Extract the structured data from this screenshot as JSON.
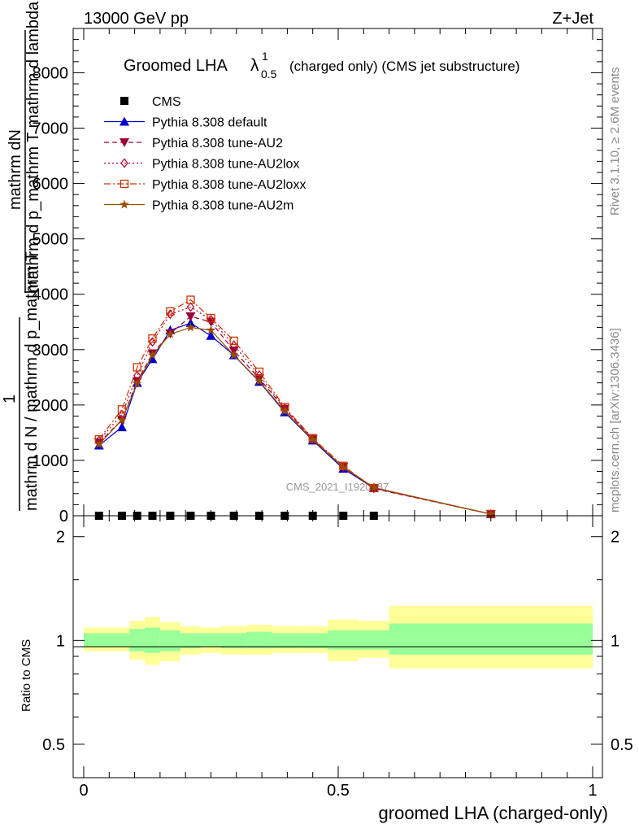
{
  "header": {
    "left": "13000 GeV pp",
    "right": "Z+Jet"
  },
  "title": {
    "prefix": "Groomed LHA",
    "lambda": "λ",
    "sup": "1",
    "sub": "0.5",
    "suffix": "(charged only) (CMS jet substructure)"
  },
  "side_labels": {
    "rivet": "Rivet 3.1.10, ≥ 2.6M events",
    "mcplots": "mcplots.cern.ch [arXiv:1306.3436]"
  },
  "watermark": "CMS_2021_I1920187",
  "axes": {
    "ylabel_top_numerator": "mathrm dN",
    "ylabel_top_denominator": "mathrm d p_mathrm T mathrm d lambda",
    "ylabel_one": "1",
    "ylabel_left_denominator": "mathrm d N / mathrm d p_mathrm T",
    "ylabel_ratio": "Ratio to CMS",
    "xlabel": "groomed LHA (charged-only)"
  },
  "colors": {
    "cms": "#000000",
    "default": "#0000cc",
    "au2": "#990033",
    "au2lox": "#b3002d",
    "au2loxx": "#cc3300",
    "au2m": "#994c00",
    "band_inner": "#99ff99",
    "band_outer": "#ffff99"
  },
  "chart_data": [
    {
      "type": "line",
      "xlim": [
        -0.04,
        1.01
      ],
      "ylim": [
        0,
        8800
      ],
      "yticks": [
        0,
        1000,
        2000,
        3000,
        4000,
        5000,
        6000,
        7000,
        8000
      ],
      "ytick_labels": [
        "0",
        "1000",
        "2000",
        "3000",
        "4000",
        "5000",
        "6000",
        "7000",
        "8000"
      ],
      "legend": [
        "CMS",
        "Pythia 8.308 default",
        "Pythia 8.308 tune-AU2",
        "Pythia 8.308 tune-AU2lox",
        "Pythia 8.308 tune-AU2loxx",
        "Pythia 8.308 tune-AU2m"
      ],
      "legend_position": "top-left",
      "x": [
        0.03,
        0.075,
        0.105,
        0.135,
        0.17,
        0.21,
        0.25,
        0.295,
        0.345,
        0.395,
        0.45,
        0.51,
        0.57,
        0.8
      ],
      "series": [
        {
          "name": "CMS",
          "marker": "square",
          "values": [
            0,
            0,
            0,
            0,
            0,
            0,
            0,
            0,
            0,
            0,
            0,
            0,
            0,
            null
          ]
        },
        {
          "name": "Pythia 8.308 default",
          "marker": "triangle-up",
          "dash": "solid",
          "values": [
            1270,
            1600,
            2400,
            2830,
            3350,
            3480,
            3250,
            2900,
            2420,
            1870,
            1360,
            850,
            500,
            30
          ]
        },
        {
          "name": "Pythia 8.308 tune-AU2",
          "marker": "triangle-down",
          "dash": "dash",
          "values": [
            1320,
            1730,
            2430,
            2930,
            3290,
            3600,
            3500,
            2980,
            2480,
            1930,
            1380,
            880,
            490,
            30
          ]
        },
        {
          "name": "Pythia 8.308 tune-AU2lox",
          "marker": "diamond",
          "dash": "dot",
          "values": [
            1360,
            1830,
            2530,
            3140,
            3640,
            3770,
            3540,
            3080,
            2540,
            1940,
            1390,
            880,
            500,
            30
          ]
        },
        {
          "name": "Pythia 8.308 tune-AU2loxx",
          "marker": "square-open",
          "dash": "dashdot",
          "values": [
            1380,
            1920,
            2680,
            3200,
            3690,
            3900,
            3570,
            3160,
            2600,
            1960,
            1400,
            900,
            500,
            30
          ]
        },
        {
          "name": "Pythia 8.308 tune-AU2m",
          "marker": "star",
          "dash": "solid",
          "values": [
            1290,
            1730,
            2390,
            2900,
            3280,
            3400,
            3350,
            2900,
            2430,
            1890,
            1370,
            880,
            510,
            30
          ]
        }
      ]
    },
    {
      "type": "area",
      "xlim": [
        -0.04,
        1.01
      ],
      "ylim": [
        0.4,
        2.3
      ],
      "yscale": "log",
      "yticks": [
        0.5,
        1,
        2
      ],
      "ytick_labels": [
        "0.5",
        "1",
        "2"
      ],
      "xticks": [
        0,
        0.5,
        1
      ],
      "xtick_labels": [
        "0",
        "0.5",
        "1"
      ],
      "reference": 1,
      "bins": [
        0,
        0.06,
        0.09,
        0.12,
        0.15,
        0.19,
        0.23,
        0.27,
        0.32,
        0.37,
        0.42,
        0.48,
        0.54,
        0.6,
        1.0
      ],
      "inner_band": {
        "lo": [
          0.96,
          0.96,
          0.93,
          0.92,
          0.93,
          0.95,
          0.96,
          0.95,
          0.95,
          0.95,
          0.95,
          0.94,
          0.94,
          0.91
        ],
        "hi": [
          1.05,
          1.05,
          1.08,
          1.09,
          1.07,
          1.05,
          1.05,
          1.05,
          1.06,
          1.05,
          1.05,
          1.07,
          1.07,
          1.12
        ]
      },
      "outer_band": {
        "lo": [
          0.93,
          0.93,
          0.88,
          0.85,
          0.87,
          0.91,
          0.92,
          0.91,
          0.91,
          0.92,
          0.92,
          0.87,
          0.89,
          0.83
        ],
        "hi": [
          1.09,
          1.09,
          1.14,
          1.17,
          1.13,
          1.1,
          1.09,
          1.1,
          1.11,
          1.1,
          1.1,
          1.15,
          1.14,
          1.26
        ]
      }
    }
  ]
}
